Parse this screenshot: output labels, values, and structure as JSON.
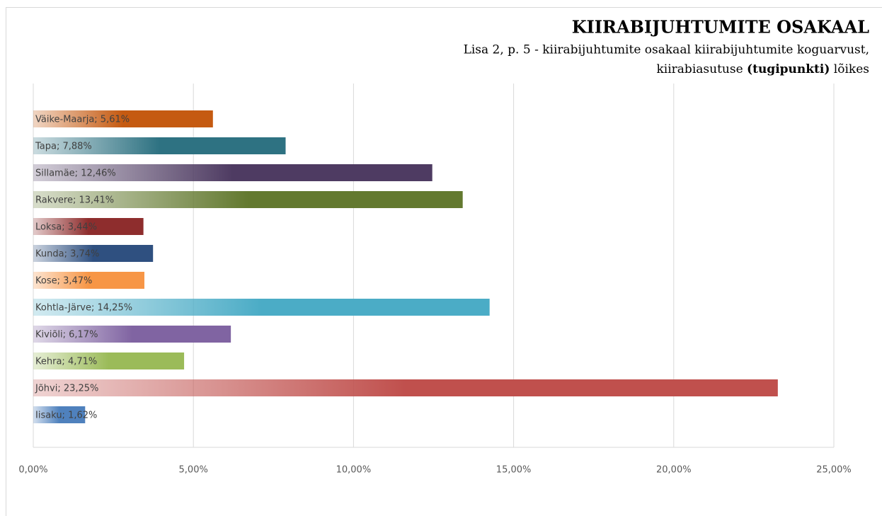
{
  "chart_data": {
    "type": "bar",
    "orientation": "horizontal",
    "title": "KIIRABIJUHTUMITE OSAKAAL",
    "subtitle": [
      "Lisa 2, p. 5 - kiirabijuhtumite osakaal kiirabijuhtumite koguarvust,",
      [
        "kiirabiasutuse ",
        "(tugipunkti)",
        " lõikes"
      ]
    ],
    "values": [
      5.61,
      7.88,
      12.46,
      13.41,
      3.44,
      3.74,
      3.47,
      14.25,
      6.17,
      4.71,
      23.25,
      1.62
    ],
    "value_labels": [
      "Väike-Maarja; 5,61%",
      "Tapa; 7,88%",
      "Sillamäe; 12,46%",
      "Rakvere; 13,41%",
      "Loksa; 3,44%",
      "Kunda; 3,74%",
      "Kose; 3,47%",
      "Kohtla-Järve; 14,25%",
      "Kiviõli; 6,17%",
      "Kehra; 4,71%",
      "Jõhvi; 23,25%",
      "Iisaku; 1,62%"
    ],
    "colors": [
      "#c55a11",
      "#2e7282",
      "#4e3b62",
      "#63792f",
      "#8e2d2d",
      "#2f5080",
      "#f79646",
      "#4bacc6",
      "#8064a2",
      "#9bbb59",
      "#c0504d",
      "#4f81bd"
    ],
    "xlim": [
      0,
      25
    ],
    "xticks": [
      {
        "value": 0,
        "label": "0,00%"
      },
      {
        "value": 5,
        "label": "5,00%"
      },
      {
        "value": 10,
        "label": "10,00%"
      },
      {
        "value": 15,
        "label": "15,00%"
      },
      {
        "value": 20,
        "label": "20,00%"
      },
      {
        "value": 25,
        "label": "25,00%"
      }
    ],
    "grid": true
  }
}
